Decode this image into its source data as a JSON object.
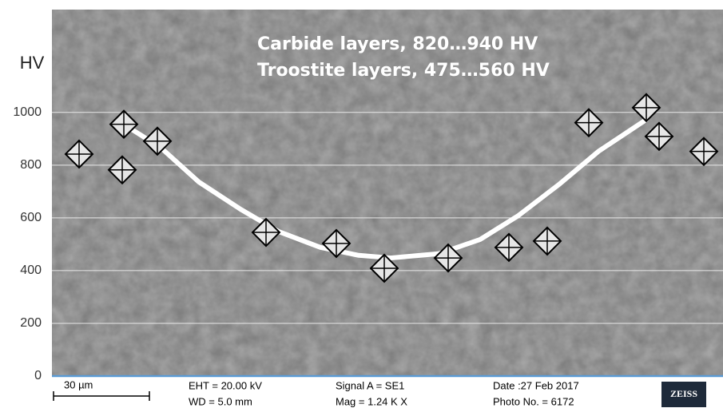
{
  "chart_data": {
    "type": "scatter",
    "y_label": "HV",
    "annotations": [
      "Carbide layers, 820…940 HV",
      "Troostite layers, 475…560 HV"
    ],
    "x": [
      8.5,
      22.5,
      22,
      33,
      67,
      89,
      104,
      124,
      143,
      155,
      168,
      186,
      190,
      204
    ],
    "values": [
      842,
      955,
      782,
      891,
      545,
      503,
      409,
      448,
      488,
      512,
      961,
      1018,
      909,
      852
    ],
    "trend": {
      "x": [
        24,
        34,
        46,
        59,
        71,
        84,
        96,
        106,
        121,
        134,
        146,
        159,
        171,
        186
      ],
      "values": [
        943,
        867,
        736,
        633,
        548,
        488,
        458,
        448,
        464,
        518,
        609,
        730,
        852,
        973
      ]
    },
    "xlim": [
      0,
      210
    ],
    "ylim": [
      0,
      1390
    ],
    "yticks": [
      0,
      200,
      400,
      600,
      800,
      1000
    ],
    "grid": true,
    "info_bar": {
      "scale": "30 µm",
      "eht": "EHT = 20.00 kV",
      "wd": "WD = 5.0 mm",
      "signal": "Signal A = SE1",
      "mag": "Mag =  1.24 K X",
      "date": "Date :27 Feb 2017",
      "photo": "Photo No. = 6172",
      "logo": "ZEISS"
    }
  }
}
